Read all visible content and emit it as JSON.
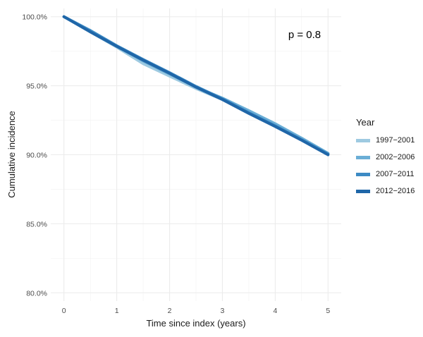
{
  "chart_data": {
    "type": "line",
    "xlabel": "Time since index (years)",
    "ylabel": "Cumulative incidence",
    "xlim": [
      -0.25,
      5.25
    ],
    "ylim": [
      79.4,
      100.6
    ],
    "x_ticks": [
      "0",
      "1",
      "2",
      "3",
      "4",
      "5"
    ],
    "y_ticks": [
      "80.0%",
      "85.0%",
      "90.0%",
      "95.0%",
      "100.0%"
    ],
    "grid": true,
    "annotation": "p = 0.8",
    "legend": {
      "title": "Year",
      "placement": "right"
    },
    "series": [
      {
        "name": "1997−2001",
        "color": "#9ecae1",
        "x": [
          0,
          0.5,
          1,
          1.5,
          2,
          2.5,
          3,
          3.5,
          4,
          4.5,
          5
        ],
        "y": [
          100.0,
          98.9,
          97.8,
          96.6,
          95.7,
          94.8,
          94.0,
          93.1,
          92.2,
          91.2,
          90.1
        ]
      },
      {
        "name": "2002−2006",
        "color": "#6baed6",
        "x": [
          0,
          0.5,
          1,
          1.5,
          2,
          2.5,
          3,
          3.5,
          4,
          4.5,
          5
        ],
        "y": [
          100.0,
          98.95,
          97.85,
          96.8,
          95.85,
          94.9,
          94.1,
          93.2,
          92.25,
          91.2,
          90.1
        ]
      },
      {
        "name": "2007−2011",
        "color": "#3d8bc4",
        "x": [
          0,
          0.5,
          1,
          1.5,
          2,
          2.5,
          3,
          3.5,
          4,
          4.5,
          5
        ],
        "y": [
          100.0,
          99.0,
          97.9,
          96.9,
          95.95,
          94.95,
          94.05,
          93.05,
          92.1,
          91.1,
          90.05
        ]
      },
      {
        "name": "2012−2016",
        "color": "#1f66a8",
        "x": [
          0,
          0.5,
          1,
          1.5,
          2,
          2.5,
          3,
          3.5,
          4,
          4.5,
          5
        ],
        "y": [
          100.0,
          98.9,
          97.85,
          96.85,
          95.9,
          94.9,
          94.0,
          93.0,
          92.05,
          91.05,
          90.0
        ]
      }
    ]
  }
}
